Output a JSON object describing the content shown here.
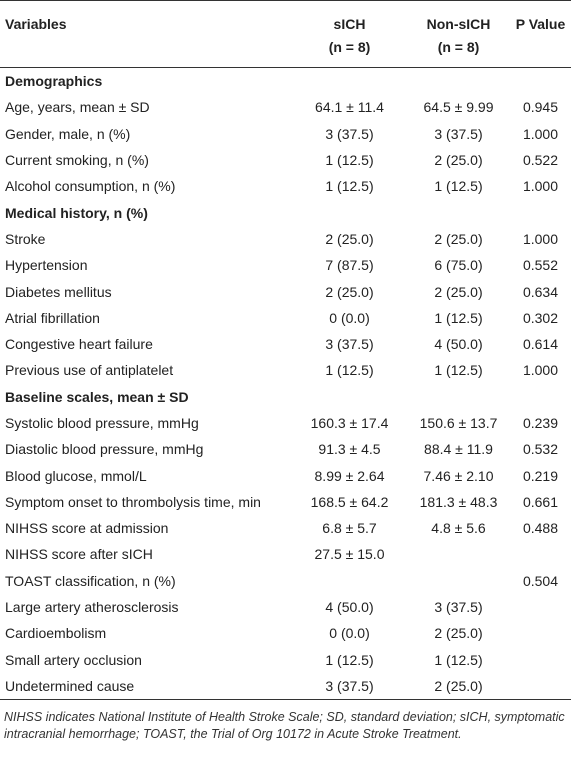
{
  "table": {
    "header": [
      "Variables",
      [
        "sICH",
        "(n = 8)"
      ],
      [
        "Non-sICH",
        "(n = 8)"
      ],
      "P Value"
    ],
    "groups": [
      {
        "title": "Demographics",
        "rows": [
          [
            "Age, years, mean ± SD",
            "64.1 ± 11.4",
            "64.5 ± 9.99",
            "0.945"
          ],
          [
            "Gender, male, n (%)",
            "3 (37.5)",
            "3 (37.5)",
            "1.000"
          ],
          [
            "Current smoking, n (%)",
            "1 (12.5)",
            "2 (25.0)",
            "0.522"
          ],
          [
            "Alcohol consumption, n (%)",
            "1 (12.5)",
            "1 (12.5)",
            "1.000"
          ]
        ]
      },
      {
        "title": "Medical history, n (%)",
        "rows": [
          [
            "Stroke",
            "2 (25.0)",
            "2 (25.0)",
            "1.000"
          ],
          [
            "Hypertension",
            "7 (87.5)",
            "6 (75.0)",
            "0.552"
          ],
          [
            "Diabetes mellitus",
            "2 (25.0)",
            "2 (25.0)",
            "0.634"
          ],
          [
            "Atrial fibrillation",
            "0 (0.0)",
            "1 (12.5)",
            "0.302"
          ],
          [
            "Congestive heart failure",
            "3 (37.5)",
            "4 (50.0)",
            "0.614"
          ],
          [
            "Previous use of antiplatelet",
            "1 (12.5)",
            "1 (12.5)",
            "1.000"
          ]
        ]
      },
      {
        "title": "Baseline scales, mean ± SD",
        "rows": [
          [
            "Systolic blood pressure, mmHg",
            "160.3 ± 17.4",
            "150.6 ± 13.7",
            "0.239"
          ],
          [
            "Diastolic blood pressure, mmHg",
            "91.3 ± 4.5",
            "88.4 ± 11.9",
            "0.532"
          ],
          [
            "Blood glucose, mmol/L",
            "8.99 ± 2.64",
            "7.46 ± 2.10",
            "0.219"
          ],
          [
            "Symptom onset to thrombolysis time, min",
            "168.5 ± 64.2",
            "181.3 ± 48.3",
            "0.661"
          ],
          [
            "NIHSS score at admission",
            "6.8 ± 5.7",
            "4.8 ± 5.6",
            "0.488"
          ],
          [
            "NIHSS score after sICH",
            "27.5 ± 15.0",
            null,
            null
          ],
          [
            "TOAST classification, n (%)",
            null,
            null,
            "0.504"
          ],
          [
            "Large artery atherosclerosis",
            "4 (50.0)",
            "3 (37.5)",
            null
          ],
          [
            "Cardioembolism",
            "0 (0.0)",
            "2 (25.0)",
            null
          ],
          [
            "Small artery occlusion",
            "1 (12.5)",
            "1 (12.5)",
            null
          ],
          [
            "Undetermined cause",
            "3 (37.5)",
            "2 (25.0)",
            null
          ]
        ]
      }
    ],
    "footnote": "NIHSS indicates National Institute of Health Stroke Scale; SD, standard deviation; sICH, symptomatic intracranial hemorrhage; TOAST, the Trial of Org 10172 in Acute Stroke Treatment."
  }
}
